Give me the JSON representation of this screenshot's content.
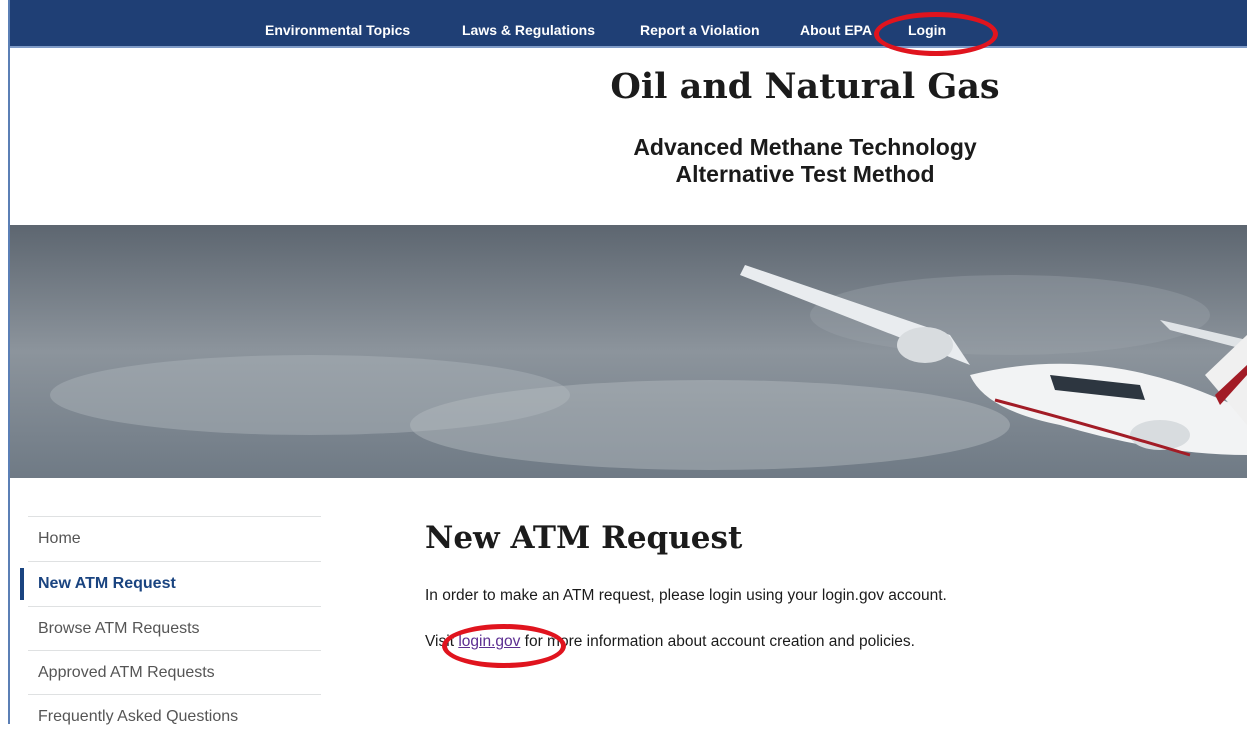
{
  "nav": {
    "links": [
      "Environmental Topics",
      "Laws & Regulations",
      "Report a Violation",
      "About EPA",
      "Login"
    ]
  },
  "header": {
    "title": "Oil and Natural Gas",
    "subtitle_lines": [
      "Advanced Methane Technology",
      "Alternative Test Method"
    ]
  },
  "sidebar": {
    "items": [
      "Home",
      "New ATM Request",
      "Browse ATM Requests",
      "Approved ATM Requests",
      "Frequently Asked Questions"
    ]
  },
  "main": {
    "heading": "New ATM Request",
    "paragraphs": [
      "In order to make an ATM request, please login using your login.gov account."
    ],
    "visit": {
      "before": "Visit ",
      "link": "login.gov",
      "after": " for more information about account creation and policies."
    }
  }
}
